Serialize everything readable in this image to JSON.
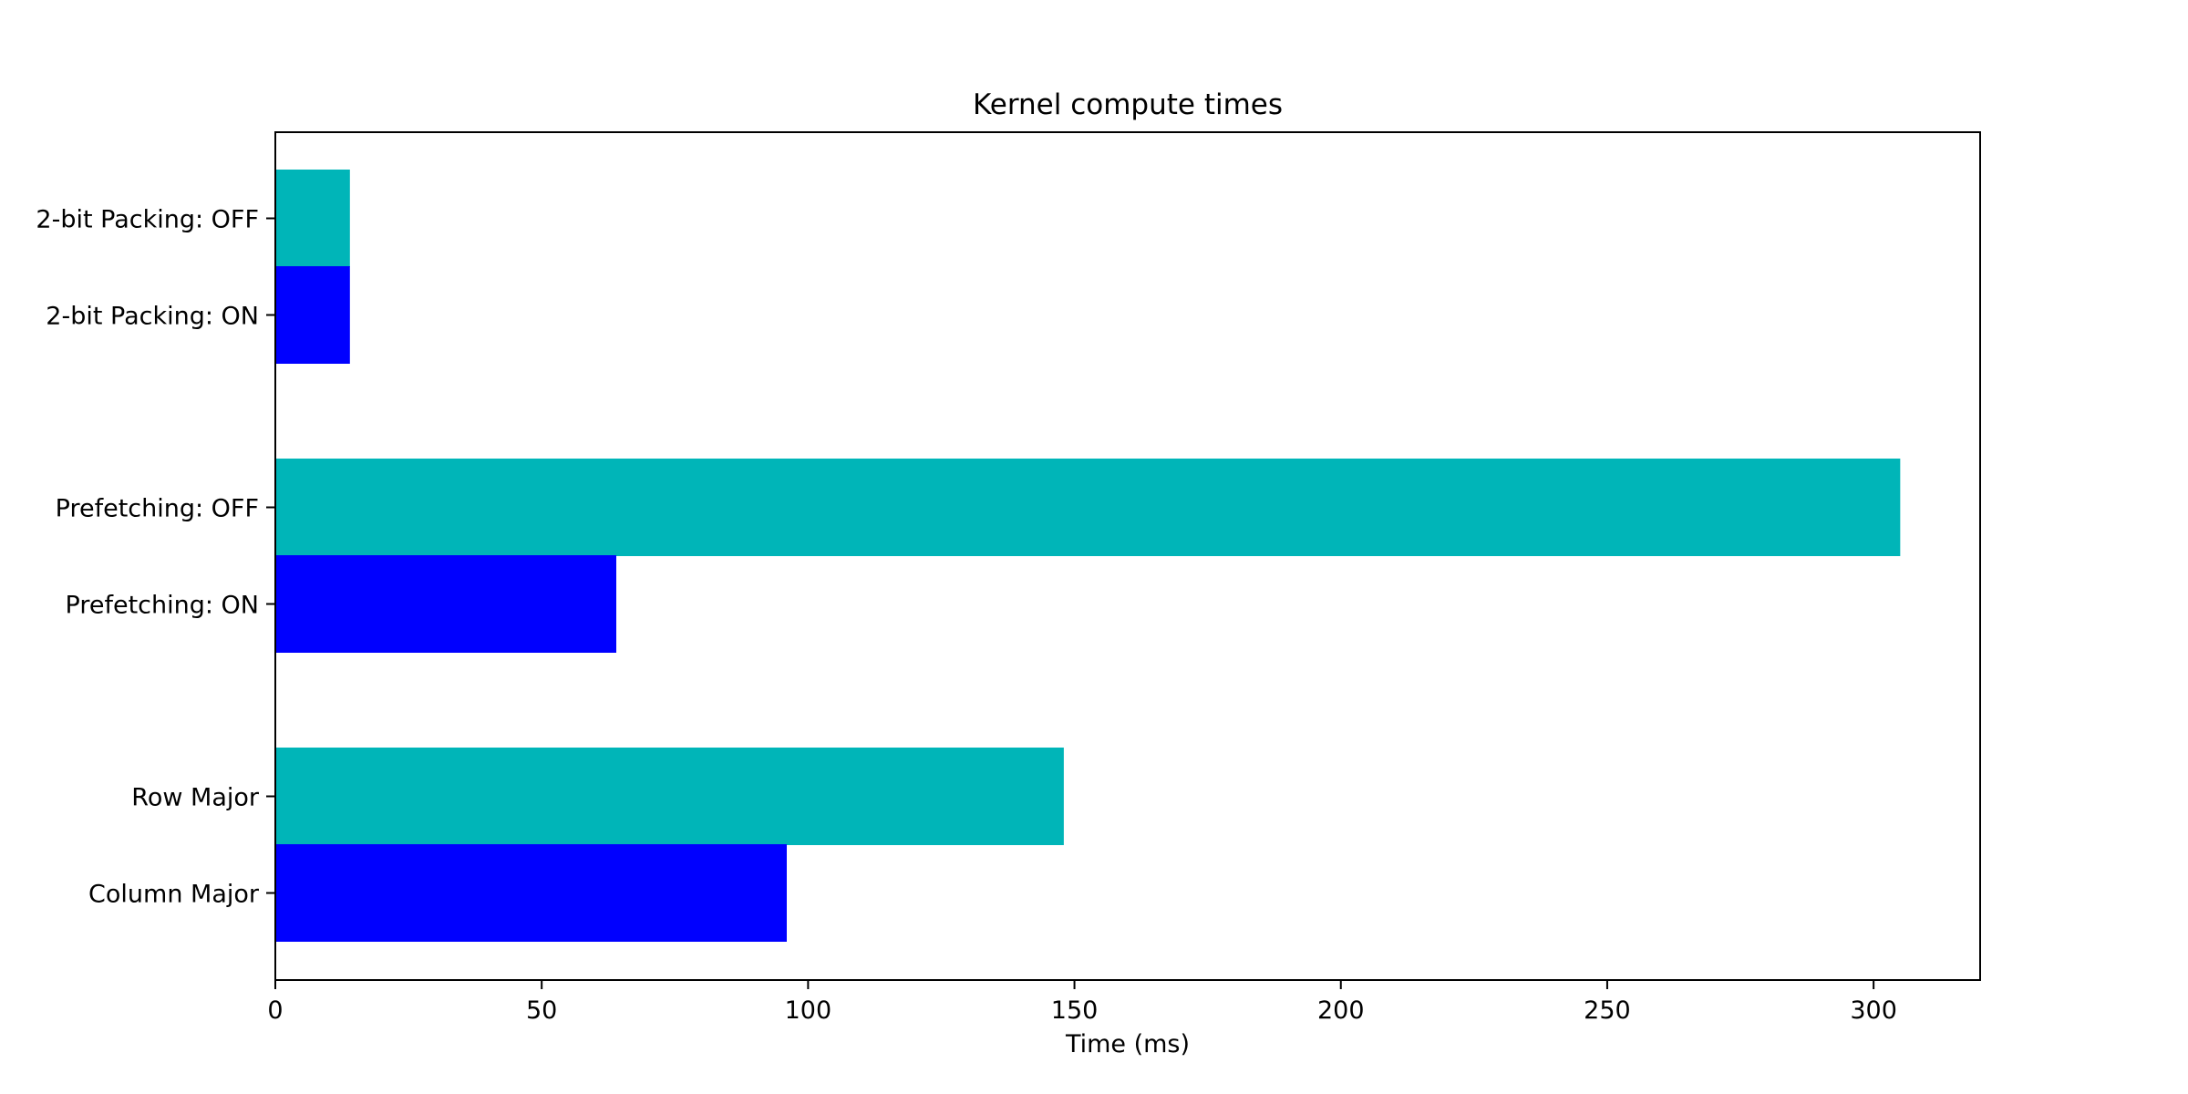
{
  "chart_data": {
    "type": "bar",
    "orientation": "horizontal",
    "title": "Kernel compute times",
    "xlabel": "Time (ms)",
    "ylabel": "",
    "xlim": [
      0,
      320
    ],
    "xticks": [
      "0",
      "50",
      "100",
      "150",
      "200",
      "250",
      "300"
    ],
    "categories": [
      "2-bit Packing: OFF",
      "2-bit Packing: ON",
      "Prefetching: OFF",
      "Prefetching: ON",
      "Row Major",
      "Column Major"
    ],
    "values": [
      14,
      14,
      305,
      64,
      148,
      96
    ],
    "colors": [
      "#00b5b8",
      "#0000ff",
      "#00b5b8",
      "#0000ff",
      "#00b5b8",
      "#0000ff"
    ],
    "grid": false,
    "legend": "none"
  }
}
